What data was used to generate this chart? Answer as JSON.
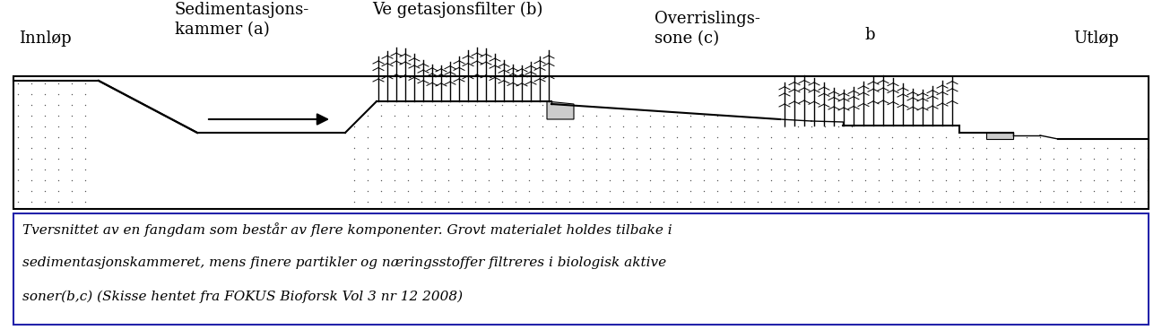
{
  "fig_width": 12.96,
  "fig_height": 3.68,
  "bg_color": "#ffffff",
  "caption_text_line1": "Tversnittet av en fangdam som består av flere komponenter. Grovt materialet holdes tilbake i",
  "caption_text_line2": "sedimentasjonskammeret, mens finere partikler og næringsstoffer filtreres i biologisk aktive",
  "caption_text_line3": "soner(b,c) (Skisse hentet fra FOKUS Bioforsk Vol 3 nr 12 2008)",
  "label_innlop": "Innløp",
  "label_sediment_line1": "Sedimentasjons-",
  "label_sediment_line2": "kammer (a)",
  "label_vegetasjon": "Ve getasjonsfilter (b)",
  "label_overrisling_line1": "Overrislings-",
  "label_overrisling_line2": "sone (c)",
  "label_b": "b",
  "label_utlop": "Utløp",
  "caption_border_color": "#2222aa",
  "font_name": "DejaVu Serif"
}
